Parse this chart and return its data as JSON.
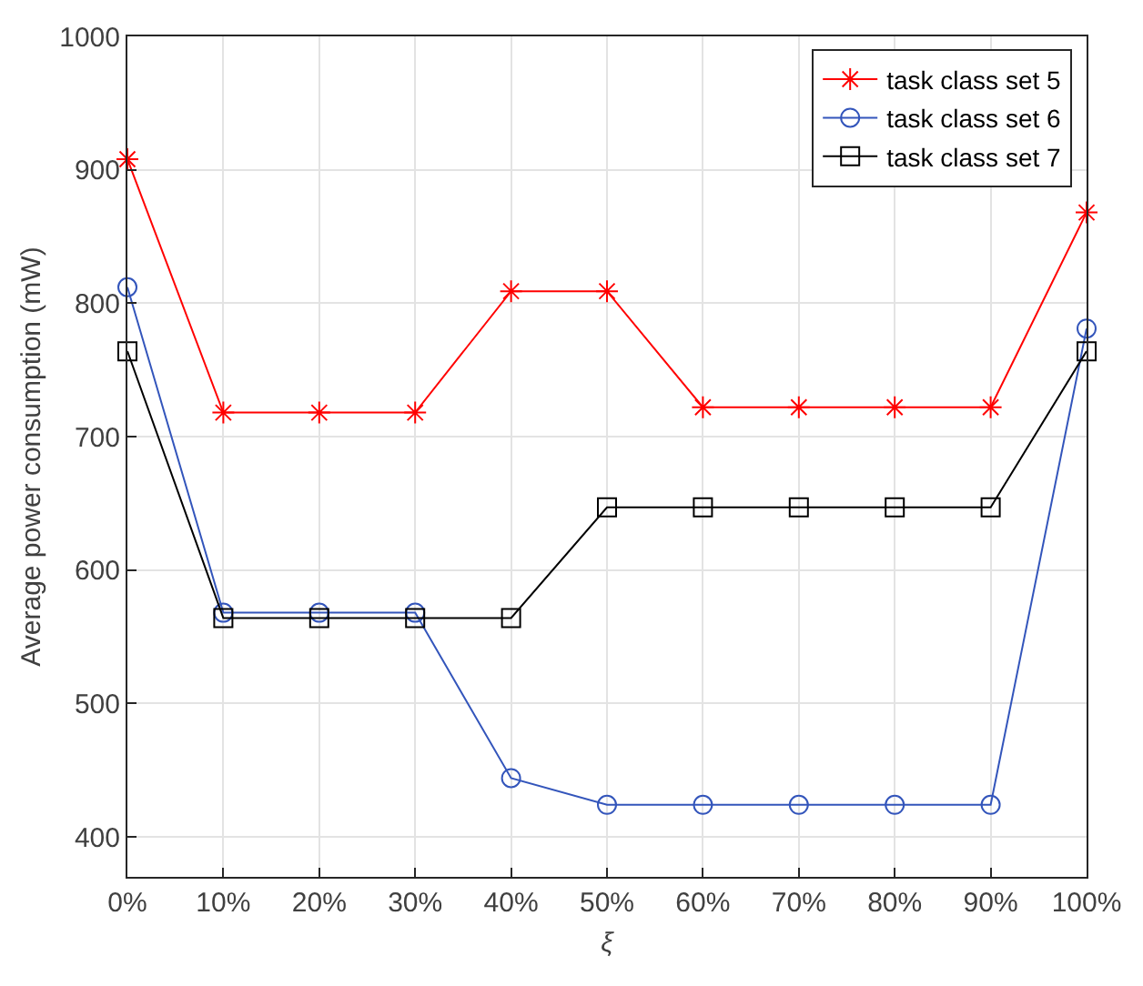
{
  "chart_data": {
    "type": "line",
    "xlabel": "ξ",
    "ylabel": "Average power consumption (mW)",
    "categories": [
      "0%",
      "10%",
      "20%",
      "30%",
      "40%",
      "50%",
      "60%",
      "70%",
      "80%",
      "90%",
      "100%"
    ],
    "series": [
      {
        "name": "task class set 5",
        "color": "#ff0000",
        "marker": "cross",
        "values": [
          908,
          718,
          718,
          718,
          809,
          809,
          722,
          722,
          722,
          722,
          868
        ]
      },
      {
        "name": "task class set 6",
        "color": "#3355bb",
        "marker": "circle",
        "values": [
          812,
          568,
          568,
          568,
          444,
          424,
          424,
          424,
          424,
          424,
          781
        ]
      },
      {
        "name": "task class set 7",
        "color": "#000000",
        "marker": "square",
        "values": [
          764,
          564,
          564,
          564,
          564,
          647,
          647,
          647,
          647,
          647,
          764
        ]
      }
    ],
    "ylim": [
      370,
      1000
    ],
    "yticks": [
      400,
      500,
      600,
      700,
      800,
      900,
      1000
    ],
    "grid": true,
    "legend": "top right",
    "line_style": "solid"
  }
}
